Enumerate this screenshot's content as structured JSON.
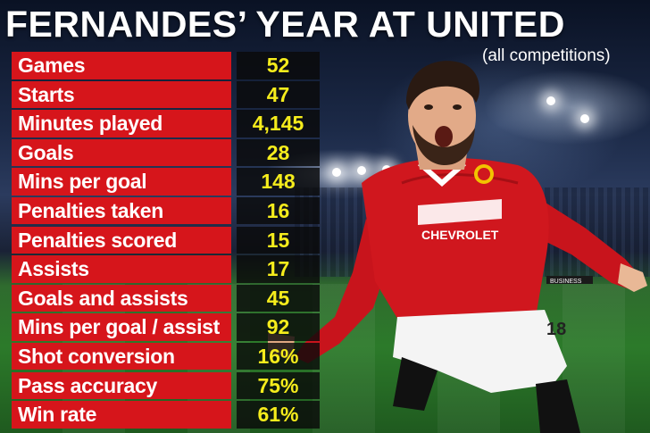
{
  "title": "FERNANDES’ YEAR AT UNITED",
  "subtitle": "(all competitions)",
  "stats": [
    {
      "label": "Games",
      "value": "52"
    },
    {
      "label": "Starts",
      "value": "47"
    },
    {
      "label": "Minutes played",
      "value": "4,145"
    },
    {
      "label": "Goals",
      "value": "28"
    },
    {
      "label": "Mins per goal",
      "value": "148"
    },
    {
      "label": "Penalties taken",
      "value": "16"
    },
    {
      "label": "Penalties scored",
      "value": "15"
    },
    {
      "label": "Assists",
      "value": "17"
    },
    {
      "label": "Goals and assists",
      "value": "45"
    },
    {
      "label": "Mins per goal / assist",
      "value": "92"
    },
    {
      "label": "Shot conversion",
      "value": "16%"
    },
    {
      "label": "Pass accuracy",
      "value": "75%"
    },
    {
      "label": "Win rate",
      "value": "61%"
    }
  ],
  "colors": {
    "label_bg": "#d6151b",
    "value_text": "#f5ec1c",
    "value_bg": "#0a0a0a",
    "shirt": "#d0171e"
  },
  "player_photo": {
    "shirt_sponsor": "CHEVROLET",
    "shirt_number": "18",
    "board_text": "BUSINESS"
  }
}
